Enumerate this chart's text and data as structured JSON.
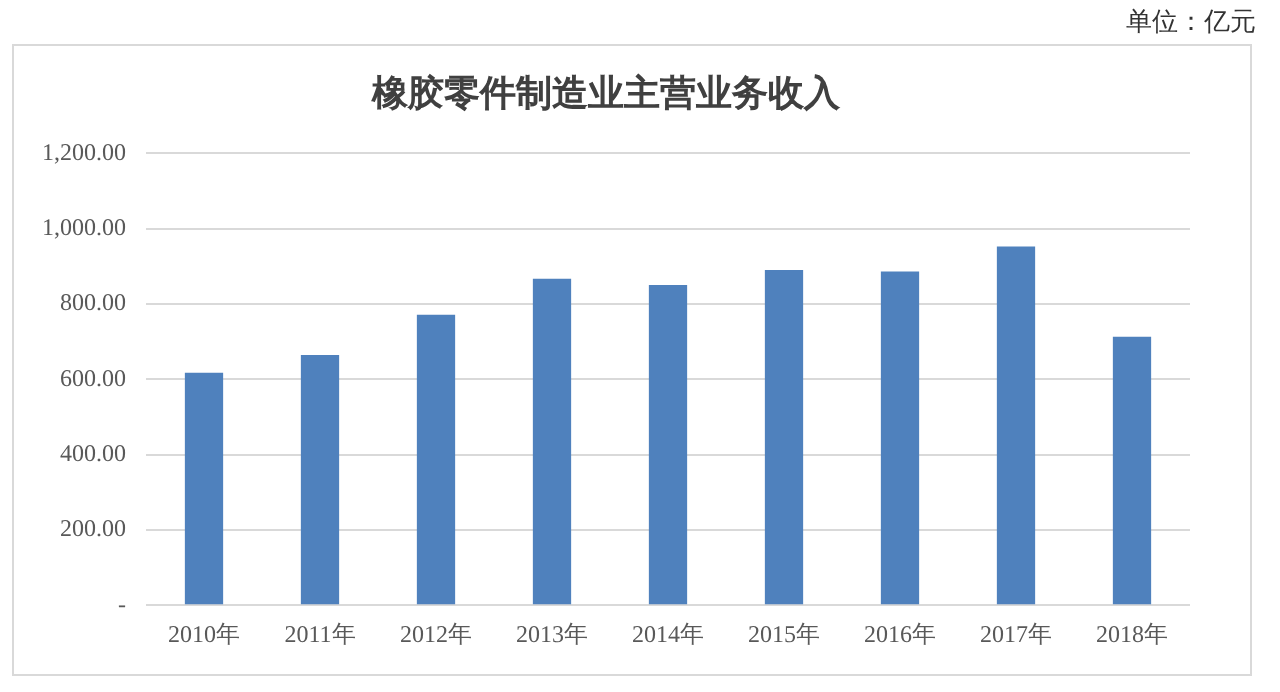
{
  "chart_data": {
    "type": "bar",
    "title": "橡胶零件制造业主营业务收入",
    "annotations": [
      "单位：亿元"
    ],
    "categories": [
      "2010年",
      "2011年",
      "2012年",
      "2013年",
      "2014年",
      "2015年",
      "2016年",
      "2017年",
      "2018年"
    ],
    "values": [
      617,
      664,
      771,
      867,
      850,
      890,
      886,
      952,
      713
    ],
    "color": "#4f81bd",
    "ylim": [
      0,
      1200
    ],
    "yticks": [
      {
        "value": 0,
        "label": "-"
      },
      {
        "value": 200,
        "label": "200.00"
      },
      {
        "value": 400,
        "label": "400.00"
      },
      {
        "value": 600,
        "label": "600.00"
      },
      {
        "value": 800,
        "label": "800.00"
      },
      {
        "value": 1000,
        "label": "1,000.00"
      },
      {
        "value": 1200,
        "label": "1,200.00"
      }
    ],
    "grid": "y",
    "legend": false
  }
}
